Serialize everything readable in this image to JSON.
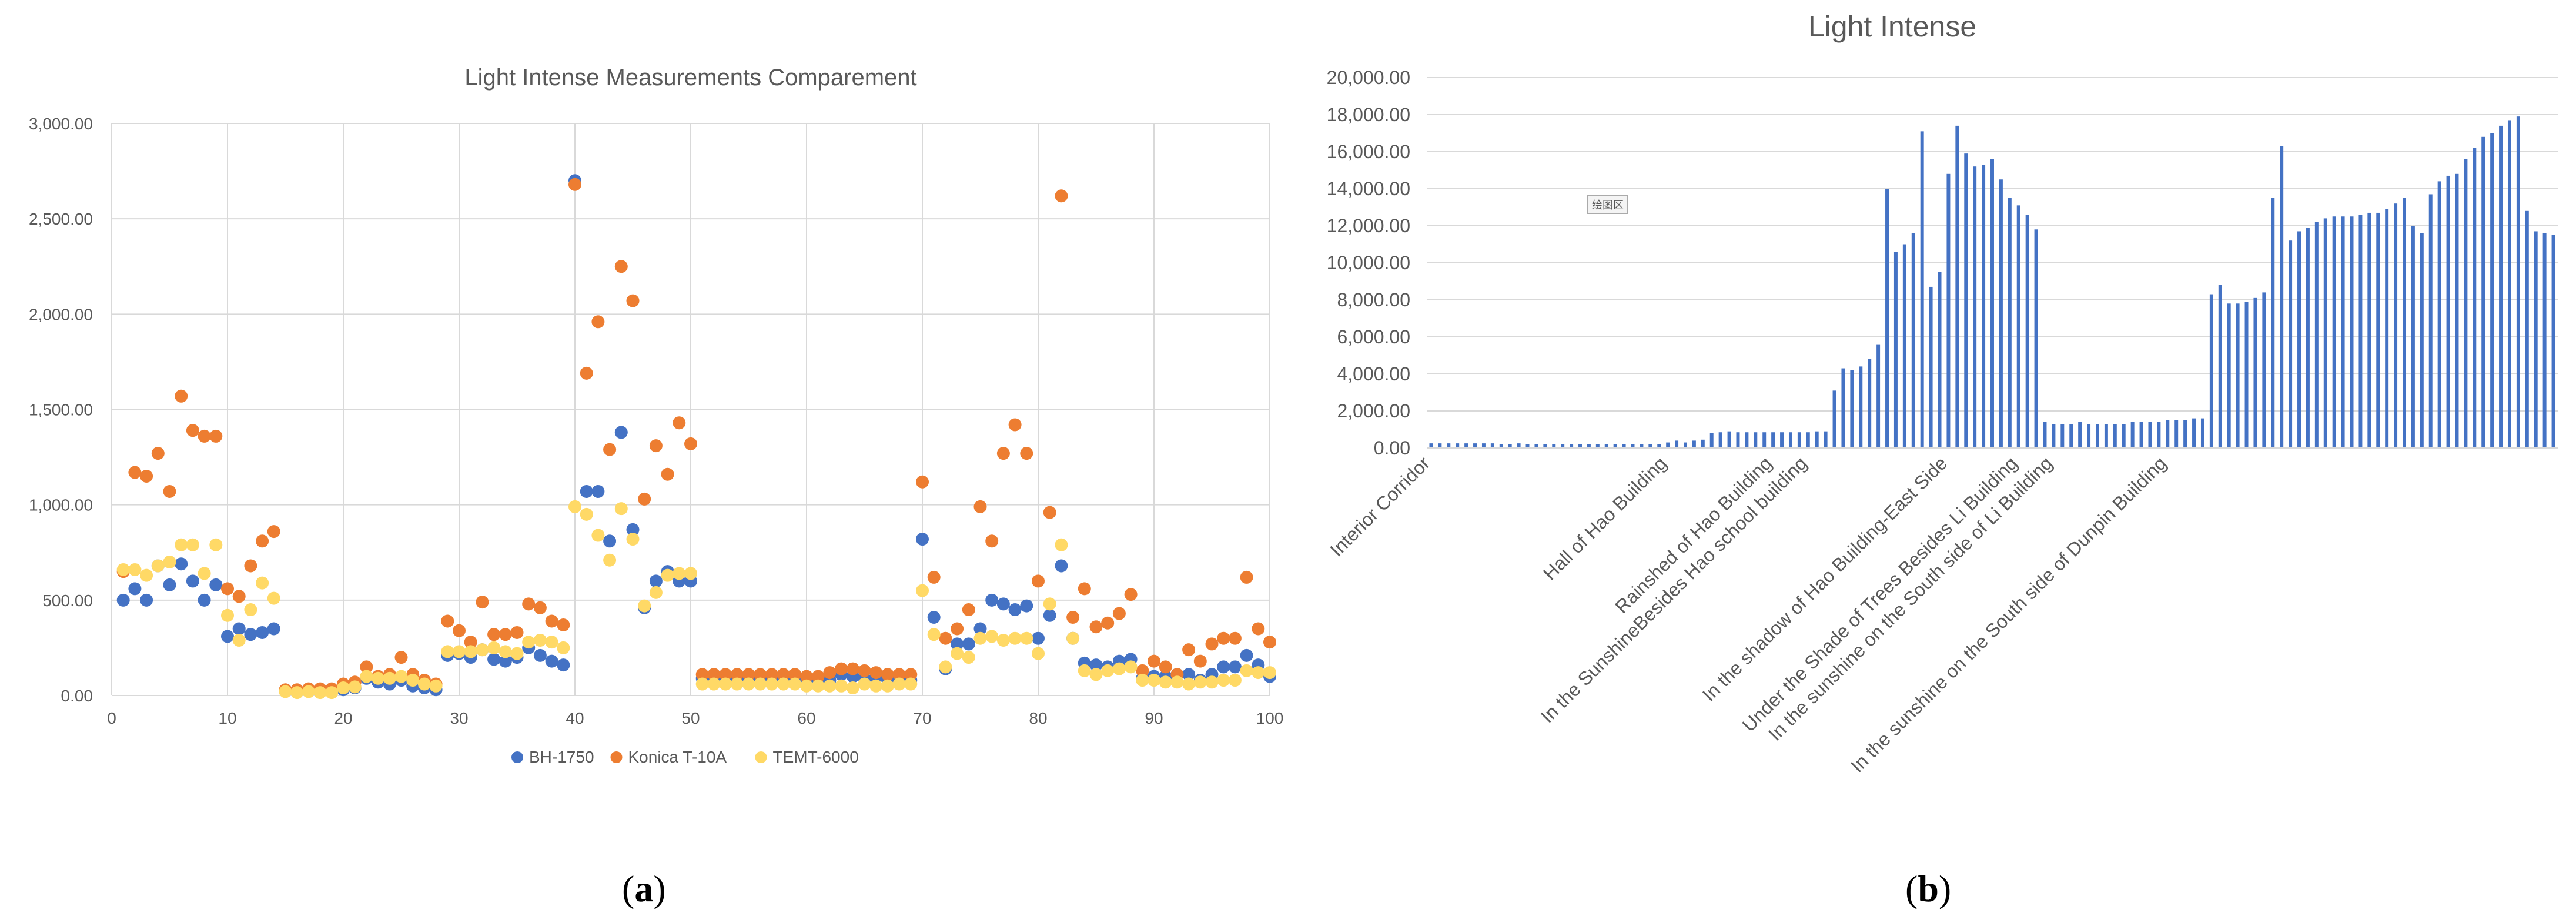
{
  "panel_labels": {
    "a": "a",
    "b": "b"
  },
  "plot_area_tag": "绘图区",
  "chart_data": [
    {
      "type": "scatter",
      "title": "Light Intense Measurements Comparement",
      "xlabel": "",
      "ylabel": "",
      "xlim": [
        0,
        100
      ],
      "ylim": [
        0,
        3000
      ],
      "xticks": [
        0,
        10,
        20,
        30,
        40,
        50,
        60,
        70,
        80,
        90,
        100
      ],
      "yticks": [
        0,
        500,
        1000,
        1500,
        2000,
        2500,
        3000
      ],
      "ytick_labels": [
        "0.00",
        "500.00",
        "1,000.00",
        "1,500.00",
        "2,000.00",
        "2,500.00",
        "3,000.00"
      ],
      "legend_position": "bottom",
      "series": [
        {
          "name": "BH-1750",
          "color": "#4472C4",
          "x": [
            1,
            2,
            3,
            4,
            5,
            6,
            7,
            8,
            9,
            10,
            11,
            12,
            13,
            14,
            15,
            16,
            17,
            18,
            19,
            20,
            21,
            22,
            23,
            24,
            25,
            26,
            27,
            28,
            29,
            30,
            31,
            32,
            33,
            34,
            35,
            36,
            37,
            38,
            39,
            40,
            41,
            42,
            43,
            44,
            45,
            46,
            47,
            48,
            49,
            50,
            51,
            52,
            53,
            54,
            55,
            56,
            57,
            58,
            59,
            60,
            61,
            62,
            63,
            64,
            65,
            66,
            67,
            68,
            69,
            70,
            71,
            72,
            73,
            74,
            75,
            76,
            77,
            78,
            79,
            80,
            81,
            82,
            83,
            84,
            85,
            86,
            87,
            88,
            89,
            90,
            91,
            92,
            93,
            94,
            95,
            96,
            97,
            98,
            99,
            100
          ],
          "y": [
            500,
            560,
            500,
            680,
            580,
            690,
            600,
            500,
            580,
            310,
            350,
            320,
            330,
            350,
            25,
            20,
            25,
            25,
            20,
            30,
            40,
            90,
            70,
            60,
            80,
            50,
            40,
            30,
            210,
            220,
            200,
            240,
            190,
            180,
            200,
            250,
            210,
            180,
            160,
            2700,
            1070,
            1070,
            810,
            1380,
            870,
            460,
            600,
            650,
            600,
            600,
            90,
            90,
            90,
            90,
            90,
            90,
            90,
            90,
            90,
            90,
            80,
            80,
            110,
            100,
            90,
            90,
            90,
            80,
            80,
            820,
            410,
            140,
            270,
            270,
            350,
            500,
            480,
            450,
            470,
            300,
            420,
            680,
            300,
            170,
            160,
            150,
            180,
            190,
            90,
            100,
            100,
            110,
            110,
            80,
            110,
            150,
            150,
            210,
            160,
            100
          ]
        },
        {
          "name": "Konica T-10A",
          "color": "#ED7D31",
          "x": [
            1,
            2,
            3,
            4,
            5,
            6,
            7,
            8,
            9,
            10,
            11,
            12,
            13,
            14,
            15,
            16,
            17,
            18,
            19,
            20,
            21,
            22,
            23,
            24,
            25,
            26,
            27,
            28,
            29,
            30,
            31,
            32,
            33,
            34,
            35,
            36,
            37,
            38,
            39,
            40,
            41,
            42,
            43,
            44,
            45,
            46,
            47,
            48,
            49,
            50,
            51,
            52,
            53,
            54,
            55,
            56,
            57,
            58,
            59,
            60,
            61,
            62,
            63,
            64,
            65,
            66,
            67,
            68,
            69,
            70,
            71,
            72,
            73,
            74,
            75,
            76,
            77,
            78,
            79,
            80,
            81,
            82,
            83,
            84,
            85,
            86,
            87,
            88,
            89,
            90,
            91,
            92,
            93,
            94,
            95,
            96,
            97,
            98,
            99,
            100
          ],
          "y": [
            650,
            1170,
            1150,
            1270,
            1070,
            1570,
            1390,
            1360,
            1360,
            560,
            520,
            680,
            810,
            860,
            30,
            30,
            35,
            35,
            35,
            60,
            70,
            150,
            100,
            110,
            200,
            110,
            80,
            60,
            390,
            340,
            280,
            490,
            320,
            320,
            330,
            480,
            460,
            390,
            370,
            2680,
            1690,
            1960,
            1290,
            2250,
            2070,
            1030,
            1310,
            1160,
            1430,
            1320,
            110,
            110,
            110,
            110,
            110,
            110,
            110,
            110,
            110,
            100,
            100,
            120,
            140,
            140,
            130,
            120,
            110,
            110,
            110,
            1120,
            620,
            300,
            350,
            450,
            990,
            810,
            1270,
            1420,
            1270,
            600,
            960,
            2620,
            410,
            560,
            360,
            380,
            430,
            530,
            130,
            180,
            150,
            110,
            240,
            180,
            270,
            300,
            300,
            620,
            350,
            280
          ]
        },
        {
          "name": "TEMT-6000",
          "color": "#FFD966",
          "x": [
            1,
            2,
            3,
            4,
            5,
            6,
            7,
            8,
            9,
            10,
            11,
            12,
            13,
            14,
            15,
            16,
            17,
            18,
            19,
            20,
            21,
            22,
            23,
            24,
            25,
            26,
            27,
            28,
            29,
            30,
            31,
            32,
            33,
            34,
            35,
            36,
            37,
            38,
            39,
            40,
            41,
            42,
            43,
            44,
            45,
            46,
            47,
            48,
            49,
            50,
            51,
            52,
            53,
            54,
            55,
            56,
            57,
            58,
            59,
            60,
            61,
            62,
            63,
            64,
            65,
            66,
            67,
            68,
            69,
            70,
            71,
            72,
            73,
            74,
            75,
            76,
            77,
            78,
            79,
            80,
            81,
            82,
            83,
            84,
            85,
            86,
            87,
            88,
            89,
            90,
            91,
            92,
            93,
            94,
            95,
            96,
            97,
            98,
            99,
            100
          ],
          "y": [
            660,
            660,
            630,
            680,
            700,
            790,
            790,
            640,
            790,
            420,
            290,
            450,
            590,
            510,
            20,
            15,
            20,
            15,
            15,
            40,
            45,
            100,
            90,
            90,
            100,
            80,
            60,
            50,
            230,
            230,
            230,
            240,
            250,
            230,
            220,
            280,
            290,
            280,
            250,
            990,
            950,
            840,
            710,
            980,
            820,
            470,
            540,
            630,
            640,
            640,
            60,
            60,
            60,
            60,
            60,
            60,
            60,
            60,
            60,
            50,
            50,
            50,
            50,
            40,
            60,
            50,
            50,
            60,
            60,
            550,
            320,
            150,
            220,
            200,
            300,
            310,
            290,
            300,
            300,
            220,
            480,
            790,
            300,
            130,
            110,
            130,
            140,
            150,
            80,
            80,
            70,
            70,
            60,
            70,
            70,
            80,
            80,
            130,
            120,
            120
          ]
        }
      ]
    },
    {
      "type": "bar",
      "title": "Light Intense",
      "xlabel": "",
      "ylabel": "",
      "ylim": [
        0,
        20000
      ],
      "yticks": [
        0,
        2000,
        4000,
        6000,
        8000,
        10000,
        12000,
        14000,
        16000,
        18000,
        20000
      ],
      "ytick_labels": [
        "0.00",
        "2,000.00",
        "4,000.00",
        "6,000.00",
        "8,000.00",
        "10,000.00",
        "12,000.00",
        "14,000.00",
        "16,000.00",
        "18,000.00",
        "20,000.00"
      ],
      "color": "#4472C4",
      "category_labels": [
        {
          "index": 0,
          "label": "Interior Corridor"
        },
        {
          "index": 27,
          "label": "Hall of Hao Building"
        },
        {
          "index": 39,
          "label": "Rainshed of Hao Building"
        },
        {
          "index": 43,
          "label": "In the SunshineBesides Hao school building"
        },
        {
          "index": 59,
          "label": "In the shadow of Hao Building-East Side"
        },
        {
          "index": 67,
          "label": "Under the Shade of Trees Besides Li Building"
        },
        {
          "index": 71,
          "label": "In the sunshine on the South side of Li Building"
        },
        {
          "index": 84,
          "label": "In the sunshine on the South side of Dunpin Building"
        }
      ],
      "values": [
        250,
        250,
        250,
        250,
        250,
        250,
        250,
        250,
        200,
        200,
        250,
        200,
        200,
        200,
        200,
        200,
        200,
        200,
        200,
        200,
        200,
        200,
        200,
        200,
        200,
        200,
        200,
        300,
        400,
        300,
        400,
        450,
        800,
        850,
        900,
        850,
        850,
        850,
        850,
        850,
        850,
        850,
        850,
        850,
        900,
        900,
        3100,
        4300,
        4200,
        4400,
        4800,
        5600,
        14000,
        10600,
        11000,
        11600,
        17100,
        8700,
        9500,
        14800,
        17400,
        15900,
        15200,
        15300,
        15600,
        14500,
        13500,
        13100,
        12600,
        11800,
        1400,
        1300,
        1300,
        1300,
        1400,
        1300,
        1300,
        1300,
        1300,
        1300,
        1400,
        1400,
        1400,
        1400,
        1500,
        1500,
        1500,
        1600,
        1600,
        8300,
        8800,
        7800,
        7800,
        7900,
        8100,
        8400,
        13500,
        16300,
        11200,
        11700,
        11900,
        12200,
        12400,
        12500,
        12500,
        12500,
        12600,
        12700,
        12700,
        12900,
        13200,
        13500,
        12000,
        11600,
        13700,
        14400,
        14700,
        14800,
        15600,
        16200,
        16800,
        17000,
        17400,
        17700,
        17900,
        12800,
        11700,
        11600,
        11500
      ]
    }
  ]
}
